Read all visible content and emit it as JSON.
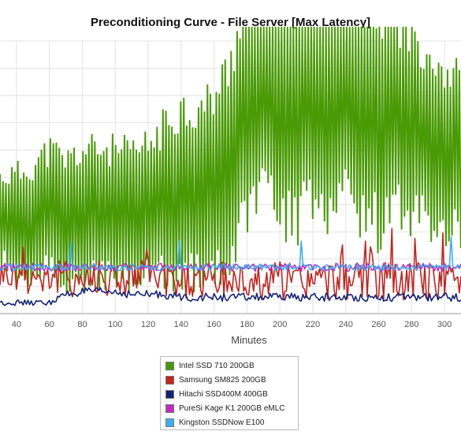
{
  "chart_data": {
    "type": "line",
    "title": "Preconditioning Curve - File Server [Max Latency]",
    "xlabel": "Minutes",
    "ylabel": "",
    "x_ticks": [
      40,
      60,
      80,
      100,
      120,
      140,
      160,
      180,
      200,
      220,
      240,
      260,
      280,
      300
    ],
    "xlim": [
      30,
      310
    ],
    "ylim": [
      0,
      100
    ],
    "grid": true,
    "legend_position": "bottom",
    "x": [
      30,
      40,
      50,
      60,
      70,
      80,
      90,
      100,
      110,
      120,
      130,
      140,
      150,
      160,
      170,
      180,
      190,
      200,
      210,
      220,
      230,
      240,
      250,
      260,
      270,
      280,
      290,
      300,
      310
    ],
    "series": [
      {
        "name": "Intel SSD 710 200GB",
        "color": "#4a9a06",
        "values": [
          36,
          32,
          34,
          38,
          34,
          36,
          37,
          36,
          35,
          38,
          42,
          46,
          44,
          48,
          55,
          80,
          88,
          86,
          84,
          82,
          80,
          84,
          76,
          72,
          74,
          68,
          66,
          60,
          58
        ],
        "amplitude": [
          18,
          24,
          26,
          28,
          28,
          30,
          30,
          30,
          30,
          30,
          34,
          38,
          38,
          40,
          46,
          56,
          60,
          60,
          60,
          56,
          52,
          52,
          50,
          50,
          46,
          44,
          40,
          38,
          36
        ]
      },
      {
        "name": "Samsung SM825 200GB",
        "color": "#c4231f",
        "values": [
          15,
          14,
          14,
          14,
          13,
          13,
          13,
          13,
          13,
          13,
          12,
          12,
          12,
          12,
          12,
          12,
          12,
          12,
          12,
          12,
          12,
          12,
          12,
          12,
          12,
          12,
          12,
          12,
          12
        ],
        "amplitude": [
          6,
          6,
          7,
          7,
          7,
          7,
          7,
          7,
          7,
          7,
          7,
          7,
          7,
          7,
          7,
          7,
          7,
          7,
          7,
          7,
          7,
          7,
          7,
          7,
          7,
          7,
          7,
          7,
          7
        ]
      },
      {
        "name": "Hitachi SSD400M 400GB",
        "color": "#14237a",
        "values": [
          4,
          4,
          4,
          4,
          7,
          8,
          8,
          8,
          7,
          7,
          7,
          6,
          6,
          6,
          6,
          6,
          6,
          6,
          6,
          6,
          6,
          6,
          6,
          6,
          6,
          6,
          6,
          6,
          6
        ],
        "amplitude": [
          1,
          1,
          1,
          1,
          1.5,
          1.5,
          1.5,
          1.5,
          1.5,
          1.5,
          1.5,
          1.5,
          1.5,
          1.5,
          1.5,
          1.5,
          1.5,
          1.5,
          1.5,
          1.5,
          1.5,
          1.5,
          1.5,
          1.5,
          1.5,
          1.5,
          1.5,
          1.5,
          1.5
        ]
      },
      {
        "name": "PureSi Kage K1 200GB eMLC",
        "color": "#c02cc0",
        "values": [
          17,
          17,
          17,
          17,
          17,
          17,
          17,
          17,
          17,
          17,
          17,
          17,
          17,
          17,
          17,
          17,
          17,
          17,
          17,
          17,
          17,
          17,
          17,
          17,
          17,
          17,
          17,
          17,
          17
        ],
        "amplitude": [
          1.5,
          1.5,
          1.5,
          1.5,
          1.5,
          1.5,
          1.5,
          1.5,
          1.5,
          1.5,
          1.5,
          1.5,
          1.5,
          1.5,
          1.5,
          1.5,
          1.5,
          1.5,
          1.5,
          1.5,
          1.5,
          1.5,
          1.5,
          1.5,
          1.5,
          1.5,
          1.5,
          1.5,
          1.5
        ]
      },
      {
        "name": "Kingston SSDNow E100",
        "color": "#3ab0f0",
        "values": [
          17,
          17,
          17,
          17,
          17,
          17,
          17,
          17,
          17,
          17,
          17,
          17,
          17,
          17,
          17,
          17,
          17,
          17,
          17,
          17,
          17,
          17,
          17,
          17,
          17,
          17,
          17,
          17,
          17
        ],
        "amplitude": [
          1.2,
          1.2,
          1.2,
          1.2,
          1.2,
          1.2,
          1.2,
          1.2,
          1.2,
          1.2,
          1.2,
          1.2,
          1.2,
          1.2,
          1.2,
          1.2,
          1.2,
          1.2,
          1.2,
          1.2,
          1.2,
          1.2,
          1.2,
          1.2,
          1.2,
          1.2,
          1.2,
          1.2,
          1.2
        ]
      }
    ]
  }
}
